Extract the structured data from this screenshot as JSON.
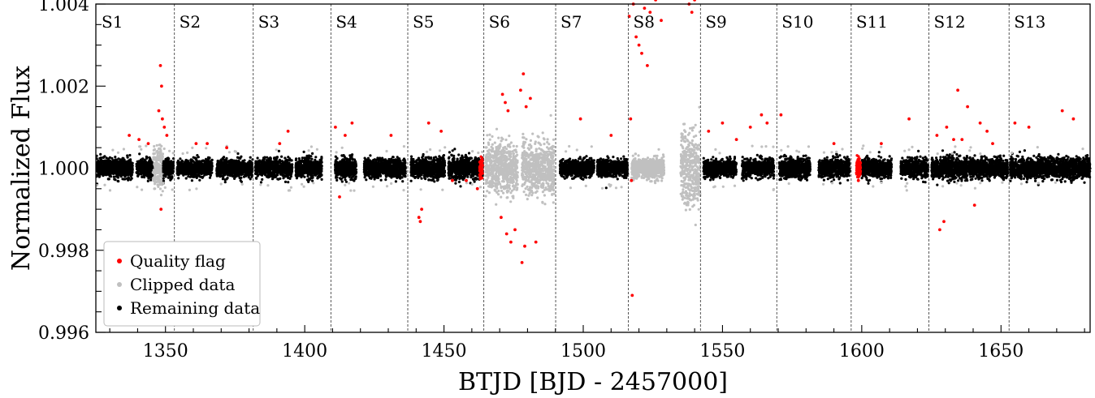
{
  "chart_data": {
    "type": "scatter",
    "xlabel": "BTJD [BJD - 2457000]",
    "ylabel": "Normalized Flux",
    "xlim": [
      1325,
      1682
    ],
    "ylim": [
      0.996,
      1.004
    ],
    "x_ticks": [
      1350,
      1400,
      1450,
      1500,
      1550,
      1600,
      1650
    ],
    "x_tick_labels": [
      "1350",
      "1400",
      "1450",
      "1500",
      "1550",
      "1600",
      "1650"
    ],
    "y_ticks": [
      0.996,
      0.998,
      1.0,
      1.002,
      1.004
    ],
    "y_tick_labels": [
      "0.996",
      "0.998",
      "1.000",
      "1.002",
      "1.004"
    ],
    "grid": false,
    "legend_position": "bottom-left",
    "series": [
      {
        "name": "Quality flag",
        "color": "#ff0000"
      },
      {
        "name": "Clipped data",
        "color": "#c0c0c0"
      },
      {
        "name": "Remaining data",
        "color": "#000000"
      }
    ],
    "sectors": [
      {
        "label": "S1",
        "start": 1325.3,
        "end": 1353.2
      },
      {
        "label": "S2",
        "start": 1353.2,
        "end": 1381.5
      },
      {
        "label": "S3",
        "start": 1381.5,
        "end": 1409.4
      },
      {
        "label": "S4",
        "start": 1409.4,
        "end": 1437.0
      },
      {
        "label": "S5",
        "start": 1437.0,
        "end": 1464.3
      },
      {
        "label": "S6",
        "start": 1464.3,
        "end": 1490.1
      },
      {
        "label": "S7",
        "start": 1490.1,
        "end": 1516.2
      },
      {
        "label": "S8",
        "start": 1516.2,
        "end": 1542.1
      },
      {
        "label": "S9",
        "start": 1542.1,
        "end": 1569.5
      },
      {
        "label": "S10",
        "start": 1569.5,
        "end": 1596.2
      },
      {
        "label": "S11",
        "start": 1596.2,
        "end": 1624.1
      },
      {
        "label": "S12",
        "start": 1624.1,
        "end": 1652.9
      },
      {
        "label": "S13",
        "start": 1652.9,
        "end": 1682.0
      }
    ],
    "segments": [
      {
        "start": 1325.3,
        "end": 1338.2,
        "sigma": 0.00011,
        "kind": "remaining"
      },
      {
        "start": 1339.6,
        "end": 1345.5,
        "sigma": 0.00011,
        "kind": "remaining"
      },
      {
        "start": 1345.5,
        "end": 1349.2,
        "sigma": 0.00025,
        "kind": "clipped"
      },
      {
        "start": 1349.2,
        "end": 1352.9,
        "sigma": 0.00011,
        "kind": "remaining"
      },
      {
        "start": 1354.2,
        "end": 1366.8,
        "sigma": 0.0001,
        "kind": "remaining"
      },
      {
        "start": 1368.4,
        "end": 1381.3,
        "sigma": 0.0001,
        "kind": "remaining"
      },
      {
        "start": 1382.3,
        "end": 1395.5,
        "sigma": 0.00011,
        "kind": "remaining"
      },
      {
        "start": 1396.8,
        "end": 1406.2,
        "sigma": 0.00012,
        "kind": "remaining"
      },
      {
        "start": 1410.9,
        "end": 1418.5,
        "sigma": 0.00012,
        "kind": "remaining"
      },
      {
        "start": 1421.3,
        "end": 1436.2,
        "sigma": 0.00011,
        "kind": "remaining"
      },
      {
        "start": 1438.1,
        "end": 1450.4,
        "sigma": 0.00012,
        "kind": "remaining"
      },
      {
        "start": 1451.6,
        "end": 1463.9,
        "sigma": 0.00013,
        "kind": "remaining"
      },
      {
        "start": 1465.0,
        "end": 1476.5,
        "sigma": 0.0003,
        "kind": "clipped"
      },
      {
        "start": 1478.0,
        "end": 1489.6,
        "sigma": 0.0003,
        "kind": "clipped"
      },
      {
        "start": 1491.6,
        "end": 1503.9,
        "sigma": 0.0001,
        "kind": "remaining"
      },
      {
        "start": 1505.0,
        "end": 1516.0,
        "sigma": 0.0001,
        "kind": "remaining"
      },
      {
        "start": 1517.4,
        "end": 1529.0,
        "sigma": 0.00012,
        "kind": "clipped"
      },
      {
        "start": 1535.0,
        "end": 1542.0,
        "sigma": 0.00045,
        "kind": "clipped"
      },
      {
        "start": 1543.2,
        "end": 1555.0,
        "sigma": 0.0001,
        "kind": "remaining"
      },
      {
        "start": 1557.0,
        "end": 1568.5,
        "sigma": 0.0001,
        "kind": "remaining"
      },
      {
        "start": 1570.4,
        "end": 1581.5,
        "sigma": 0.00012,
        "kind": "remaining"
      },
      {
        "start": 1584.5,
        "end": 1595.7,
        "sigma": 0.00011,
        "kind": "remaining"
      },
      {
        "start": 1599.8,
        "end": 1610.7,
        "sigma": 0.00011,
        "kind": "remaining"
      },
      {
        "start": 1614.0,
        "end": 1623.9,
        "sigma": 0.00011,
        "kind": "remaining"
      },
      {
        "start": 1625.1,
        "end": 1638.0,
        "sigma": 0.00013,
        "kind": "remaining"
      },
      {
        "start": 1638.5,
        "end": 1652.4,
        "sigma": 0.00011,
        "kind": "remaining"
      },
      {
        "start": 1653.2,
        "end": 1682.0,
        "sigma": 0.00012,
        "kind": "remaining"
      }
    ],
    "quality_flag_points": [
      [
        1337.0,
        1.0008
      ],
      [
        1340.5,
        1.0007
      ],
      [
        1343.8,
        1.0006
      ],
      [
        1347.6,
        1.0014
      ],
      [
        1348.2,
        1.0025
      ],
      [
        1348.6,
        1.002
      ],
      [
        1348.9,
        1.0012
      ],
      [
        1348.4,
        0.999
      ],
      [
        1349.6,
        1.001
      ],
      [
        1350.5,
        1.0008
      ],
      [
        1361.0,
        1.0006
      ],
      [
        1365.0,
        1.0006
      ],
      [
        1372.0,
        1.0005
      ],
      [
        1391.0,
        1.0006
      ],
      [
        1394.0,
        1.0009
      ],
      [
        1411.0,
        1.001
      ],
      [
        1412.5,
        0.9993
      ],
      [
        1414.5,
        1.0008
      ],
      [
        1417.0,
        1.0011
      ],
      [
        1431.0,
        1.0008
      ],
      [
        1441.0,
        0.9988
      ],
      [
        1441.5,
        0.9987
      ],
      [
        1442.0,
        0.999
      ],
      [
        1444.5,
        1.0011
      ],
      [
        1449.0,
        1.0009
      ],
      [
        1453.0,
        0.9997
      ],
      [
        1458.0,
        0.9997
      ],
      [
        1462.0,
        0.9995
      ],
      [
        1471.0,
        1.0018
      ],
      [
        1472.0,
        1.0016
      ],
      [
        1473.0,
        1.0014
      ],
      [
        1470.5,
        0.9988
      ],
      [
        1472.5,
        0.9984
      ],
      [
        1474.0,
        0.9982
      ],
      [
        1475.5,
        0.9985
      ],
      [
        1477.5,
        1.0019
      ],
      [
        1478.5,
        1.0023
      ],
      [
        1479.5,
        1.0015
      ],
      [
        1481.0,
        1.0017
      ],
      [
        1478.0,
        0.9977
      ],
      [
        1479.0,
        0.9981
      ],
      [
        1483.0,
        0.9982
      ],
      [
        1499.0,
        1.0012
      ],
      [
        1510.0,
        1.0008
      ],
      [
        1516.5,
        1.0037
      ],
      [
        1517.0,
        1.0012
      ],
      [
        1517.3,
        0.9997
      ],
      [
        1517.6,
        0.9969
      ],
      [
        1518.0,
        1.004
      ],
      [
        1519.0,
        1.0032
      ],
      [
        1520.0,
        1.003
      ],
      [
        1521.0,
        1.0028
      ],
      [
        1522.0,
        1.0039
      ],
      [
        1523.0,
        1.0025
      ],
      [
        1524.0,
        1.0038
      ],
      [
        1526.0,
        1.0041
      ],
      [
        1528.0,
        1.0036
      ],
      [
        1538.0,
        1.004
      ],
      [
        1539.0,
        1.0038
      ],
      [
        1540.0,
        1.0041
      ],
      [
        1545.0,
        1.0009
      ],
      [
        1550.0,
        1.0011
      ],
      [
        1555.0,
        1.0007
      ],
      [
        1560.0,
        1.001
      ],
      [
        1564.0,
        1.0013
      ],
      [
        1566.0,
        1.0011
      ],
      [
        1571.0,
        1.0013
      ],
      [
        1590.0,
        1.0006
      ],
      [
        1598.8,
        0.9997
      ],
      [
        1599.2,
        1.0
      ],
      [
        1607.0,
        1.0006
      ],
      [
        1617.0,
        1.0012
      ],
      [
        1627.0,
        1.0008
      ],
      [
        1628.0,
        0.9985
      ],
      [
        1629.5,
        0.9987
      ],
      [
        1630.5,
        1.001
      ],
      [
        1633.0,
        1.0007
      ],
      [
        1634.5,
        1.0019
      ],
      [
        1636.0,
        1.0007
      ],
      [
        1638.0,
        1.0015
      ],
      [
        1640.5,
        0.9991
      ],
      [
        1642.5,
        1.0011
      ],
      [
        1645.0,
        1.0009
      ],
      [
        1647.0,
        1.0006
      ],
      [
        1655.0,
        1.0011
      ],
      [
        1660.0,
        1.001
      ],
      [
        1672.0,
        1.0014
      ],
      [
        1676.0,
        1.0012
      ]
    ],
    "legend_box": {
      "entries": [
        "Quality flag",
        "Clipped data",
        "Remaining data"
      ]
    }
  }
}
